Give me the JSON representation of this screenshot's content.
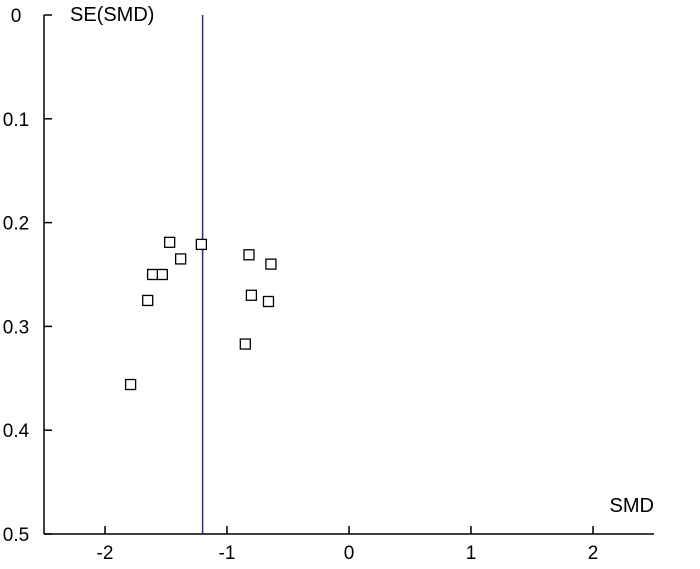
{
  "chart_data": {
    "type": "scatter",
    "plot_kind": "funnel plot",
    "xlabel": "SMD",
    "ylabel": "SE(SMD)",
    "xlim": [
      -2.5,
      2.5
    ],
    "ylim": [
      0,
      0.5
    ],
    "y_inverted": true,
    "x_ticks": [
      -2,
      -1,
      0,
      1,
      2
    ],
    "x_tick_labels": [
      "-2",
      "-1",
      "0",
      "1",
      "2"
    ],
    "y_ticks": [
      0,
      0.1,
      0.2,
      0.3,
      0.4,
      0.5
    ],
    "y_tick_labels": [
      "0",
      "0.1",
      "0.2",
      "0.3",
      "0.4",
      "0.5"
    ],
    "reference_line": {
      "x": -1.2,
      "color": "#2b2b80"
    },
    "marker": "open-square",
    "grid": false,
    "points": [
      {
        "x": -1.47,
        "y": 0.219
      },
      {
        "x": -1.21,
        "y": 0.221
      },
      {
        "x": -0.82,
        "y": 0.231
      },
      {
        "x": -1.38,
        "y": 0.235
      },
      {
        "x": -0.64,
        "y": 0.24
      },
      {
        "x": -1.61,
        "y": 0.25
      },
      {
        "x": -1.53,
        "y": 0.25
      },
      {
        "x": -0.8,
        "y": 0.27
      },
      {
        "x": -1.65,
        "y": 0.275
      },
      {
        "x": -0.66,
        "y": 0.276
      },
      {
        "x": -0.85,
        "y": 0.317
      },
      {
        "x": -1.79,
        "y": 0.356
      }
    ]
  }
}
